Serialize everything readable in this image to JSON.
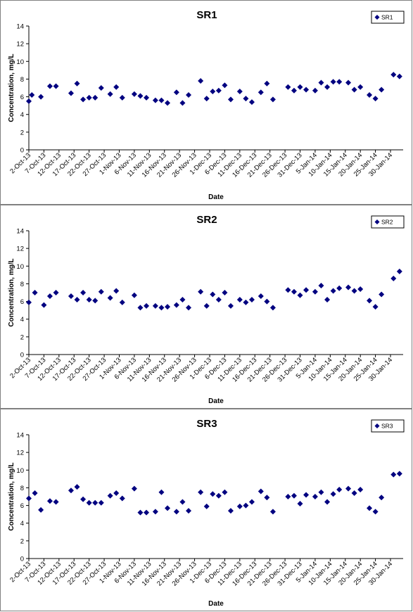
{
  "chart_data": [
    {
      "type": "scatter",
      "title": "SR1",
      "xlabel": "Date",
      "ylabel": "Concentration, mg/L",
      "ylim": [
        0,
        14
      ],
      "yticks": [
        "0",
        "2",
        "4",
        "6",
        "8",
        "10",
        "12",
        "14"
      ],
      "xlim": [
        "2013-10-02",
        "2014-01-30"
      ],
      "xticks": [
        "2-Oct-13",
        "7-Oct-13",
        "12-Oct-13",
        "17-Oct-13",
        "22-Oct-13",
        "27-Oct-13",
        "1-Nov-13",
        "6-Nov-13",
        "11-Nov-13",
        "16-Nov-13",
        "21-Nov-13",
        "26-Nov-13",
        "1-Dec-13",
        "6-Dec-13",
        "11-Dec-13",
        "16-Dec-13",
        "21-Dec-13",
        "26-Dec-13",
        "31-Dec-13",
        "5-Jan-14",
        "10-Jan-14",
        "15-Jan-14",
        "20-Jan-14",
        "25-Jan-14",
        "30-Jan-14"
      ],
      "grid": false,
      "legend_position": "top-right",
      "series": [
        {
          "name": "SR1",
          "color": "#000080",
          "marker": "diamond",
          "points": [
            {
              "x": "2013-10-02",
              "y": 5.5
            },
            {
              "x": "2013-10-03",
              "y": 6.2
            },
            {
              "x": "2013-10-06",
              "y": 6.0
            },
            {
              "x": "2013-10-09",
              "y": 7.2
            },
            {
              "x": "2013-10-11",
              "y": 7.2
            },
            {
              "x": "2013-10-16",
              "y": 6.4
            },
            {
              "x": "2013-10-18",
              "y": 7.5
            },
            {
              "x": "2013-10-20",
              "y": 5.7
            },
            {
              "x": "2013-10-22",
              "y": 5.9
            },
            {
              "x": "2013-10-24",
              "y": 5.9
            },
            {
              "x": "2013-10-26",
              "y": 7.0
            },
            {
              "x": "2013-10-29",
              "y": 6.3
            },
            {
              "x": "2013-10-31",
              "y": 7.1
            },
            {
              "x": "2013-11-02",
              "y": 5.9
            },
            {
              "x": "2013-11-06",
              "y": 6.3
            },
            {
              "x": "2013-11-08",
              "y": 6.1
            },
            {
              "x": "2013-11-10",
              "y": 5.9
            },
            {
              "x": "2013-11-13",
              "y": 5.6
            },
            {
              "x": "2013-11-15",
              "y": 5.6
            },
            {
              "x": "2013-11-17",
              "y": 5.3
            },
            {
              "x": "2013-11-20",
              "y": 6.5
            },
            {
              "x": "2013-11-22",
              "y": 5.3
            },
            {
              "x": "2013-11-24",
              "y": 6.2
            },
            {
              "x": "2013-11-28",
              "y": 7.8
            },
            {
              "x": "2013-11-30",
              "y": 5.8
            },
            {
              "x": "2013-12-02",
              "y": 6.6
            },
            {
              "x": "2013-12-04",
              "y": 6.7
            },
            {
              "x": "2013-12-06",
              "y": 7.3
            },
            {
              "x": "2013-12-08",
              "y": 5.7
            },
            {
              "x": "2013-12-11",
              "y": 6.6
            },
            {
              "x": "2013-12-13",
              "y": 5.8
            },
            {
              "x": "2013-12-15",
              "y": 5.4
            },
            {
              "x": "2013-12-18",
              "y": 6.5
            },
            {
              "x": "2013-12-20",
              "y": 7.5
            },
            {
              "x": "2013-12-22",
              "y": 5.7
            },
            {
              "x": "2013-12-27",
              "y": 7.1
            },
            {
              "x": "2013-12-29",
              "y": 6.7
            },
            {
              "x": "2013-12-31",
              "y": 7.1
            },
            {
              "x": "2014-01-02",
              "y": 6.8
            },
            {
              "x": "2014-01-05",
              "y": 6.7
            },
            {
              "x": "2014-01-07",
              "y": 7.6
            },
            {
              "x": "2014-01-09",
              "y": 7.1
            },
            {
              "x": "2014-01-11",
              "y": 7.7
            },
            {
              "x": "2014-01-13",
              "y": 7.7
            },
            {
              "x": "2014-01-16",
              "y": 7.6
            },
            {
              "x": "2014-01-18",
              "y": 6.8
            },
            {
              "x": "2014-01-20",
              "y": 7.1
            },
            {
              "x": "2014-01-23",
              "y": 6.2
            },
            {
              "x": "2014-01-25",
              "y": 5.8
            },
            {
              "x": "2014-01-27",
              "y": 6.8
            },
            {
              "x": "2014-01-31",
              "y": 8.5
            },
            {
              "x": "2014-02-02",
              "y": 8.3
            }
          ]
        }
      ]
    },
    {
      "type": "scatter",
      "title": "SR2",
      "xlabel": "Date",
      "ylabel": "Concentration, mg/L",
      "ylim": [
        0,
        14
      ],
      "yticks": [
        "0",
        "2",
        "4",
        "6",
        "8",
        "10",
        "12",
        "14"
      ],
      "xlim": [
        "2013-10-02",
        "2014-01-30"
      ],
      "xticks": [
        "2-Oct-13",
        "7-Oct-13",
        "12-Oct-13",
        "17-Oct-13",
        "22-Oct-13",
        "27-Oct-13",
        "1-Nov-13",
        "6-Nov-13",
        "11-Nov-13",
        "16-Nov-13",
        "21-Nov-13",
        "26-Nov-13",
        "1-Dec-13",
        "6-Dec-13",
        "11-Dec-13",
        "16-Dec-13",
        "21-Dec-13",
        "26-Dec-13",
        "31-Dec-13",
        "5-Jan-14",
        "10-Jan-14",
        "15-Jan-14",
        "20-Jan-14",
        "25-Jan-14",
        "30-Jan-14"
      ],
      "grid": false,
      "legend_position": "top-right",
      "series": [
        {
          "name": "SR2",
          "color": "#000080",
          "marker": "diamond",
          "points": [
            {
              "x": "2013-10-02",
              "y": 5.9
            },
            {
              "x": "2013-10-04",
              "y": 7.0
            },
            {
              "x": "2013-10-07",
              "y": 5.6
            },
            {
              "x": "2013-10-09",
              "y": 6.6
            },
            {
              "x": "2013-10-11",
              "y": 7.0
            },
            {
              "x": "2013-10-16",
              "y": 6.6
            },
            {
              "x": "2013-10-18",
              "y": 6.2
            },
            {
              "x": "2013-10-20",
              "y": 7.0
            },
            {
              "x": "2013-10-22",
              "y": 6.2
            },
            {
              "x": "2013-10-24",
              "y": 6.1
            },
            {
              "x": "2013-10-26",
              "y": 7.1
            },
            {
              "x": "2013-10-29",
              "y": 6.4
            },
            {
              "x": "2013-10-31",
              "y": 7.2
            },
            {
              "x": "2013-11-02",
              "y": 5.9
            },
            {
              "x": "2013-11-06",
              "y": 6.7
            },
            {
              "x": "2013-11-08",
              "y": 5.3
            },
            {
              "x": "2013-11-10",
              "y": 5.5
            },
            {
              "x": "2013-11-13",
              "y": 5.5
            },
            {
              "x": "2013-11-15",
              "y": 5.3
            },
            {
              "x": "2013-11-17",
              "y": 5.4
            },
            {
              "x": "2013-11-20",
              "y": 5.6
            },
            {
              "x": "2013-11-22",
              "y": 6.2
            },
            {
              "x": "2013-11-24",
              "y": 5.3
            },
            {
              "x": "2013-11-28",
              "y": 7.1
            },
            {
              "x": "2013-11-30",
              "y": 5.5
            },
            {
              "x": "2013-12-02",
              "y": 6.8
            },
            {
              "x": "2013-12-04",
              "y": 6.2
            },
            {
              "x": "2013-12-06",
              "y": 7.0
            },
            {
              "x": "2013-12-08",
              "y": 5.5
            },
            {
              "x": "2013-12-11",
              "y": 6.2
            },
            {
              "x": "2013-12-13",
              "y": 5.9
            },
            {
              "x": "2013-12-15",
              "y": 6.2
            },
            {
              "x": "2013-12-18",
              "y": 6.6
            },
            {
              "x": "2013-12-20",
              "y": 6.0
            },
            {
              "x": "2013-12-22",
              "y": 5.3
            },
            {
              "x": "2013-12-27",
              "y": 7.3
            },
            {
              "x": "2013-12-29",
              "y": 7.1
            },
            {
              "x": "2013-12-31",
              "y": 6.7
            },
            {
              "x": "2014-01-02",
              "y": 7.3
            },
            {
              "x": "2014-01-05",
              "y": 7.1
            },
            {
              "x": "2014-01-07",
              "y": 7.8
            },
            {
              "x": "2014-01-09",
              "y": 6.2
            },
            {
              "x": "2014-01-11",
              "y": 7.2
            },
            {
              "x": "2014-01-13",
              "y": 7.5
            },
            {
              "x": "2014-01-16",
              "y": 7.6
            },
            {
              "x": "2014-01-18",
              "y": 7.2
            },
            {
              "x": "2014-01-20",
              "y": 7.4
            },
            {
              "x": "2014-01-23",
              "y": 6.1
            },
            {
              "x": "2014-01-25",
              "y": 5.4
            },
            {
              "x": "2014-01-27",
              "y": 6.8
            },
            {
              "x": "2014-01-31",
              "y": 8.6
            },
            {
              "x": "2014-02-02",
              "y": 9.4
            }
          ]
        }
      ]
    },
    {
      "type": "scatter",
      "title": "SR3",
      "xlabel": "Date",
      "ylabel": "Concentration, mg/L",
      "ylim": [
        0,
        14
      ],
      "yticks": [
        "0",
        "2",
        "4",
        "6",
        "8",
        "10",
        "12",
        "14"
      ],
      "xlim": [
        "2013-10-02",
        "2014-01-30"
      ],
      "xticks": [
        "2-Oct-13",
        "7-Oct-13",
        "12-Oct-13",
        "17-Oct-13",
        "22-Oct-13",
        "27-Oct-13",
        "1-Nov-13",
        "6-Nov-13",
        "11-Nov-13",
        "16-Nov-13",
        "21-Nov-13",
        "26-Nov-13",
        "1-Dec-13",
        "6-Dec-13",
        "11-Dec-13",
        "16-Dec-13",
        "21-Dec-13",
        "26-Dec-13",
        "31-Dec-13",
        "5-Jan-14",
        "10-Jan-14",
        "15-Jan-14",
        "20-Jan-14",
        "25-Jan-14",
        "30-Jan-14"
      ],
      "grid": false,
      "legend_position": "top-right",
      "series": [
        {
          "name": "SR3",
          "color": "#000080",
          "marker": "diamond",
          "points": [
            {
              "x": "2013-10-02",
              "y": 6.8
            },
            {
              "x": "2013-10-04",
              "y": 7.4
            },
            {
              "x": "2013-10-06",
              "y": 5.5
            },
            {
              "x": "2013-10-09",
              "y": 6.5
            },
            {
              "x": "2013-10-11",
              "y": 6.4
            },
            {
              "x": "2013-10-16",
              "y": 7.7
            },
            {
              "x": "2013-10-18",
              "y": 8.1
            },
            {
              "x": "2013-10-20",
              "y": 6.7
            },
            {
              "x": "2013-10-22",
              "y": 6.3
            },
            {
              "x": "2013-10-24",
              "y": 6.3
            },
            {
              "x": "2013-10-26",
              "y": 6.3
            },
            {
              "x": "2013-10-29",
              "y": 7.1
            },
            {
              "x": "2013-10-31",
              "y": 7.4
            },
            {
              "x": "2013-11-02",
              "y": 6.8
            },
            {
              "x": "2013-11-06",
              "y": 7.9
            },
            {
              "x": "2013-11-08",
              "y": 5.2
            },
            {
              "x": "2013-11-10",
              "y": 5.2
            },
            {
              "x": "2013-11-13",
              "y": 5.3
            },
            {
              "x": "2013-11-15",
              "y": 7.5
            },
            {
              "x": "2013-11-17",
              "y": 5.7
            },
            {
              "x": "2013-11-20",
              "y": 5.3
            },
            {
              "x": "2013-11-22",
              "y": 6.4
            },
            {
              "x": "2013-11-24",
              "y": 5.4
            },
            {
              "x": "2013-11-28",
              "y": 7.5
            },
            {
              "x": "2013-11-30",
              "y": 5.9
            },
            {
              "x": "2013-12-02",
              "y": 7.3
            },
            {
              "x": "2013-12-04",
              "y": 7.1
            },
            {
              "x": "2013-12-06",
              "y": 7.5
            },
            {
              "x": "2013-12-08",
              "y": 5.4
            },
            {
              "x": "2013-12-11",
              "y": 5.9
            },
            {
              "x": "2013-12-13",
              "y": 6.0
            },
            {
              "x": "2013-12-15",
              "y": 6.4
            },
            {
              "x": "2013-12-18",
              "y": 7.6
            },
            {
              "x": "2013-12-20",
              "y": 6.9
            },
            {
              "x": "2013-12-22",
              "y": 5.3
            },
            {
              "x": "2013-12-27",
              "y": 7.0
            },
            {
              "x": "2013-12-29",
              "y": 7.1
            },
            {
              "x": "2013-12-31",
              "y": 6.2
            },
            {
              "x": "2014-01-02",
              "y": 7.2
            },
            {
              "x": "2014-01-05",
              "y": 7.0
            },
            {
              "x": "2014-01-07",
              "y": 7.5
            },
            {
              "x": "2014-01-09",
              "y": 6.4
            },
            {
              "x": "2014-01-11",
              "y": 7.3
            },
            {
              "x": "2014-01-13",
              "y": 7.8
            },
            {
              "x": "2014-01-16",
              "y": 7.9
            },
            {
              "x": "2014-01-18",
              "y": 7.4
            },
            {
              "x": "2014-01-20",
              "y": 7.8
            },
            {
              "x": "2014-01-23",
              "y": 5.7
            },
            {
              "x": "2014-01-25",
              "y": 5.3
            },
            {
              "x": "2014-01-27",
              "y": 6.9
            },
            {
              "x": "2014-01-31",
              "y": 9.5
            },
            {
              "x": "2014-02-02",
              "y": 9.6
            }
          ]
        }
      ]
    }
  ]
}
